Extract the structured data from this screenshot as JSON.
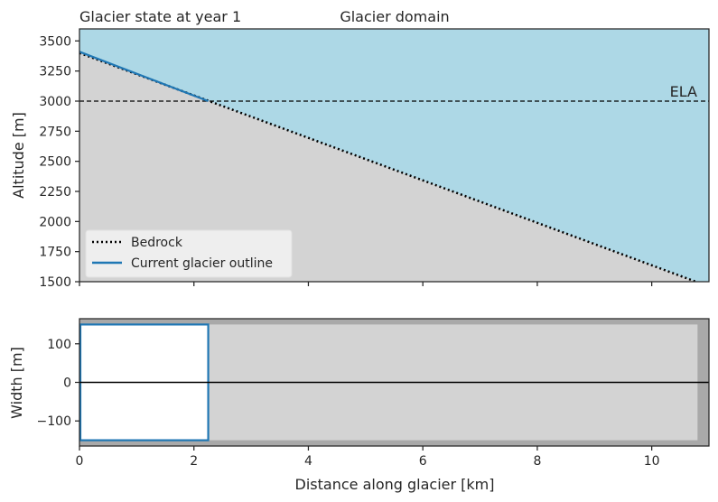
{
  "chart_data": [
    {
      "type": "area",
      "panel": "profile",
      "titles": {
        "left": "Glacier state at year 1",
        "center": "Glacier domain"
      },
      "ylabel": "Altitude [m]",
      "xlim": [
        0,
        11
      ],
      "ylim": [
        1500,
        3600
      ],
      "yticks": [
        1500,
        1750,
        2000,
        2250,
        2500,
        2750,
        3000,
        3250,
        3500
      ],
      "ytick_labels": [
        "1500",
        "1750",
        "2000",
        "2250",
        "2500",
        "2750",
        "3000",
        "3250",
        "3500"
      ],
      "xticks": [
        0,
        2,
        4,
        6,
        8,
        10
      ],
      "series": [
        {
          "name": "Bedrock",
          "style": "dotted",
          "color": "#000000",
          "x": [
            0,
            11
          ],
          "y": [
            3400,
            1460
          ]
        },
        {
          "name": "Current glacier outline",
          "style": "solid",
          "color": "#1f77b4",
          "x": [
            0,
            2.25
          ],
          "y": [
            3410,
            3000
          ]
        }
      ],
      "ela": {
        "label": "ELA",
        "value": 3000
      },
      "colors": {
        "air": "#add8e6",
        "bedrock_fill": "#d3d3d3"
      },
      "legend": "lower-left"
    },
    {
      "type": "area",
      "panel": "width",
      "xlabel": "Distance along glacier [km]",
      "ylabel": "Width [m]",
      "xlim": [
        0,
        11
      ],
      "ylim": [
        -165,
        165
      ],
      "yticks": [
        -100,
        0,
        100
      ],
      "ytick_labels": [
        "−100",
        "0",
        "100"
      ],
      "xticks": [
        0,
        2,
        4,
        6,
        8,
        10
      ],
      "xtick_labels": [
        "0",
        "2",
        "4",
        "6",
        "8",
        "10"
      ],
      "domain": {
        "x_end": 10.8,
        "half_width": 150
      },
      "glacier": {
        "x_end": 2.25,
        "half_width": 150
      },
      "colors": {
        "outer": "#a9a9a9",
        "domain": "#d3d3d3",
        "glacier": "#ffffff",
        "outline": "#1f77b4"
      }
    }
  ]
}
